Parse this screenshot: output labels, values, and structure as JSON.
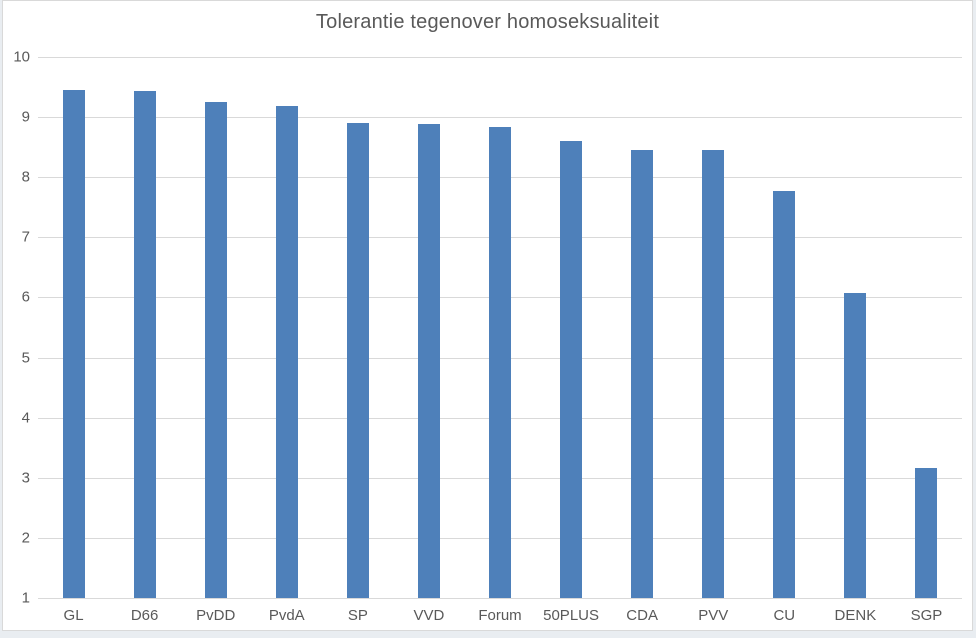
{
  "chart_data": {
    "type": "bar",
    "title": "Tolerantie tegenover homoseksualiteit",
    "categories": [
      "GL",
      "D66",
      "PvDD",
      "PvdA",
      "SP",
      "VVD",
      "Forum",
      "50PLUS",
      "CDA",
      "PVV",
      "CU",
      "DENK",
      "SGP"
    ],
    "values": [
      9.45,
      9.43,
      9.25,
      9.18,
      8.9,
      8.88,
      8.83,
      8.6,
      8.45,
      8.45,
      7.77,
      6.07,
      3.17
    ],
    "xlabel": "",
    "ylabel": "",
    "ylim": [
      1,
      10
    ],
    "yticks": [
      1,
      2,
      3,
      4,
      5,
      6,
      7,
      8,
      9,
      10
    ],
    "grid": true,
    "legend_position": "none"
  },
  "colors": {
    "bar": "#4e80ba",
    "gridline": "#d9d9d9",
    "axis_line": "#d9d9d9",
    "text": "#595959",
    "chart_background": "#ffffff",
    "chart_border": "#d9d9d9",
    "outer_background": "#e9edf1"
  }
}
